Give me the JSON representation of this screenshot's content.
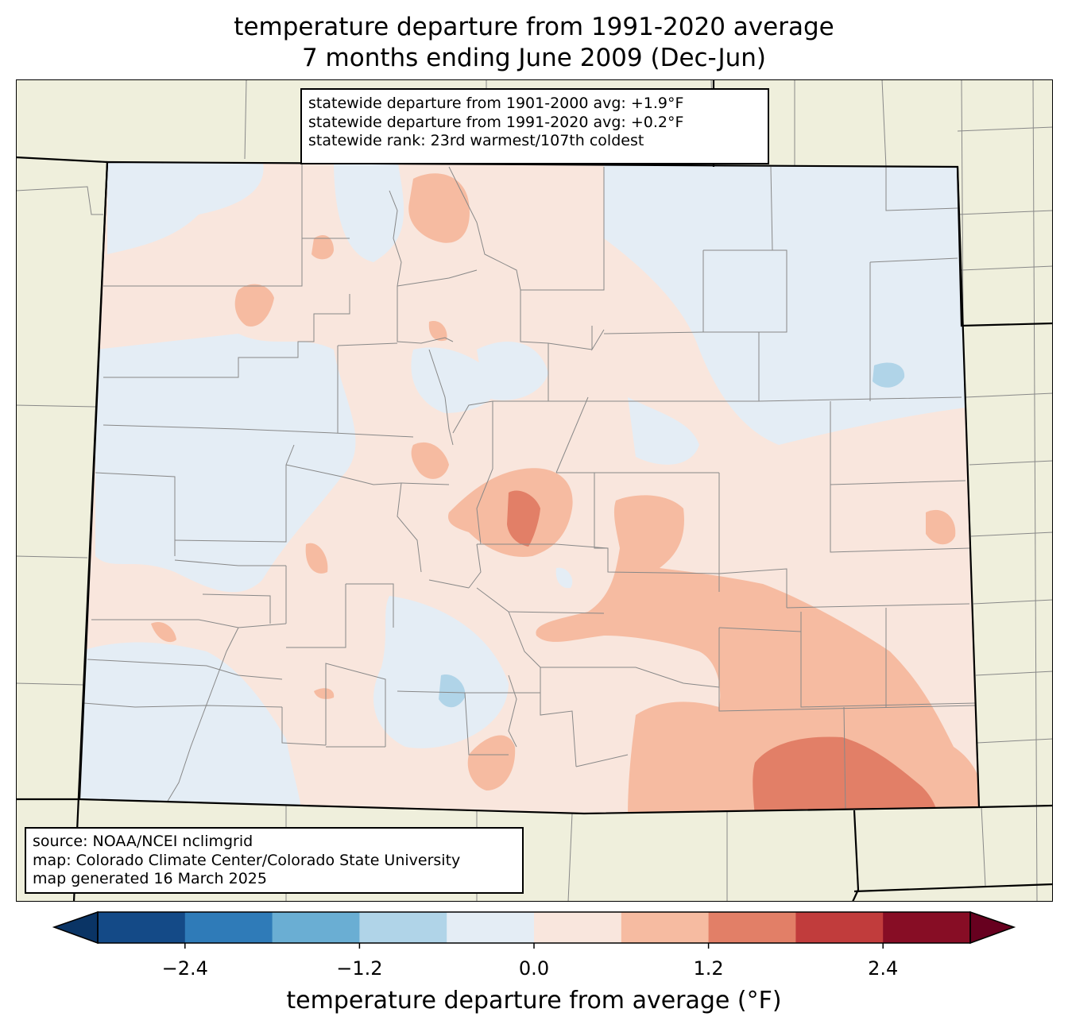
{
  "title_line1": "temperature departure from 1991-2020 average",
  "title_line2": "7 months ending June 2009 (Dec-Jun)",
  "stats": {
    "line1": "statewide departure from 1901-2000 avg: +1.9°F",
    "line2": "statewide departure from 1991-2020 avg: +0.2°F",
    "line3": "statewide rank: 23rd warmest/107th coldest"
  },
  "source": {
    "line1": "source: NOAA/NCEI nclimgrid",
    "line2": "map: Colorado Climate Center/Colorado State University",
    "line3": "map generated 16 March 2025"
  },
  "colorbar": {
    "label": "temperature departure from average (°F)",
    "ticks": [
      {
        "value": -2.4,
        "label": "−2.4"
      },
      {
        "value": -1.2,
        "label": "−1.2"
      },
      {
        "value": 0.0,
        "label": "0.0"
      },
      {
        "value": 1.2,
        "label": "1.2"
      },
      {
        "value": 2.4,
        "label": "2.4"
      }
    ],
    "range": [
      -3.0,
      3.0
    ],
    "step": 0.6,
    "colors": [
      "#144a87",
      "#2f7bb8",
      "#6aaed3",
      "#b0d4e8",
      "#e4edf5",
      "#f9e6dd",
      "#f6bba1",
      "#e27f67",
      "#c13c3c",
      "#870d25"
    ],
    "under_color": "#0a3465",
    "over_color": "#67001f"
  },
  "map_colors": {
    "land": "#efefdc",
    "neutral_cool": "#e4edf5",
    "neutral_warm": "#f9e6dd",
    "warm": "#f6bba1",
    "hot": "#e27f67",
    "cool": "#b0d4e8"
  }
}
